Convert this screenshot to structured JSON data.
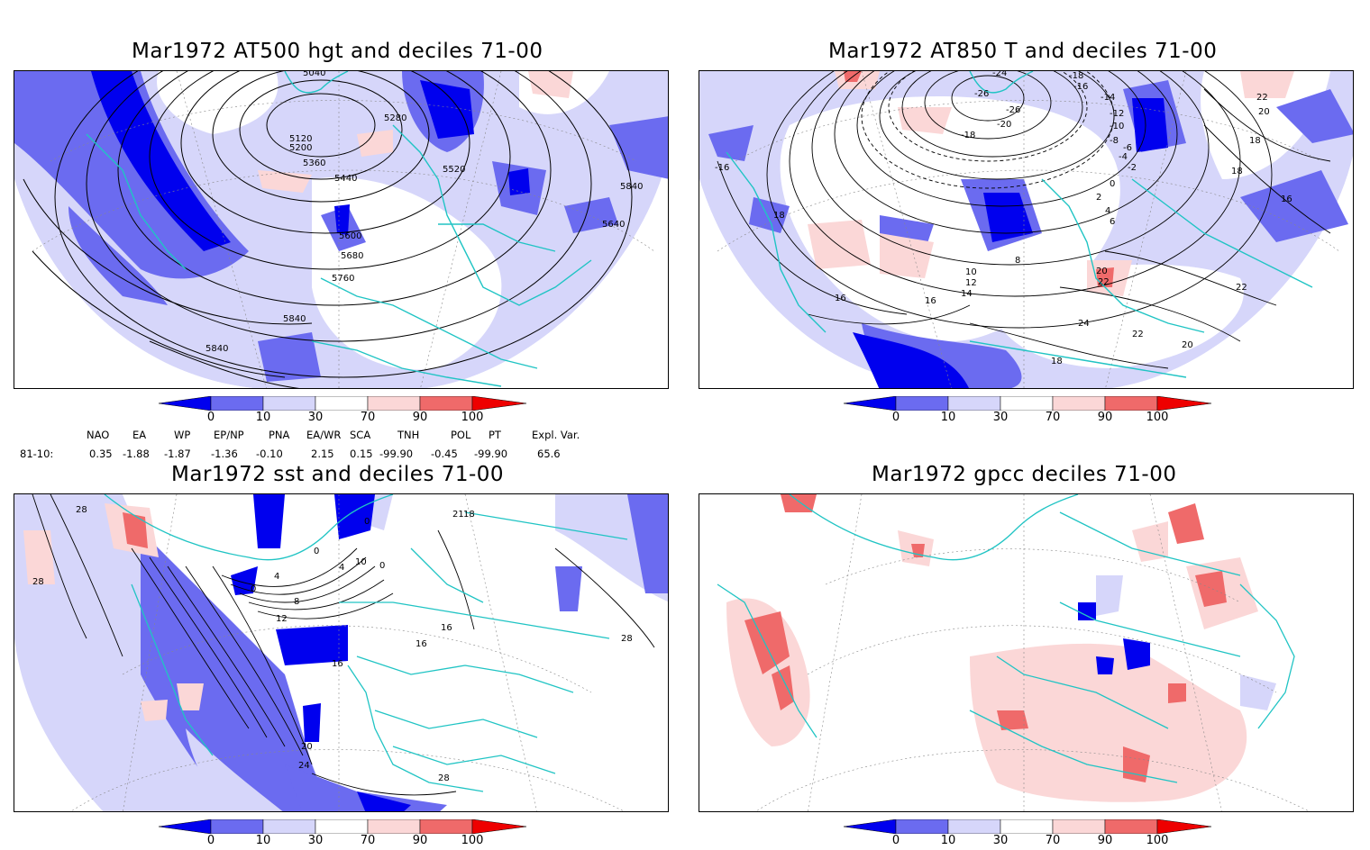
{
  "titles": {
    "p1": "Mar1972 AT500 hgt and deciles 71-00",
    "p2": "Mar1972 AT850 T and deciles 71-00",
    "p3": "Mar1972 sst and deciles 71-00",
    "p4": "Mar1972 gpcc deciles 71-00"
  },
  "colorbar": {
    "labels": [
      "0",
      "10",
      "30",
      "70",
      "90",
      "100"
    ],
    "colors": [
      "#0000ee",
      "#6b6bf0",
      "#d6d6fa",
      "#ffffff",
      "#fbd7d7",
      "#ef6a6a",
      "#ee0000"
    ]
  },
  "indices": {
    "headers": [
      "NAO",
      "EA",
      "WP",
      "EP/NP",
      "PNA",
      "EA/WR",
      "SCA",
      "TNH",
      "POL",
      "PT",
      "Expl. Var."
    ],
    "row_label": "81-10:",
    "values": [
      "0.35",
      "-1.88",
      "-1.87",
      "-1.36",
      "-0.10",
      "2.15",
      "0.15",
      "-99.90",
      "-0.45",
      "-99.90",
      "65.6"
    ]
  },
  "contour_labels": {
    "p1": [
      "5040",
      "5120",
      "5200",
      "5280",
      "5360",
      "5440",
      "5520",
      "5600",
      "5680",
      "5760",
      "5840",
      "5840",
      "5840",
      "5840",
      "5840",
      "5640",
      "5640"
    ],
    "p2": [
      "-24",
      "-26",
      "-26",
      "-20",
      "-18",
      "-12",
      "-10",
      "-8",
      "-16",
      "-14",
      "-12",
      "-10",
      "-8",
      "-6",
      "-4",
      "-2",
      "0",
      "2",
      "4",
      "6",
      "8",
      "10",
      "12",
      "14",
      "16",
      "16",
      "18",
      "18",
      "18",
      "18",
      "20",
      "20",
      "22",
      "22",
      "22",
      "24",
      "22",
      "16",
      "20",
      "22"
    ],
    "p3": [
      "28",
      "28",
      "0",
      "0",
      "4",
      "8",
      "12",
      "16",
      "20",
      "24",
      "28",
      "28",
      "16",
      "16",
      "18",
      "21",
      "0",
      "0",
      "10",
      "4"
    ]
  }
}
